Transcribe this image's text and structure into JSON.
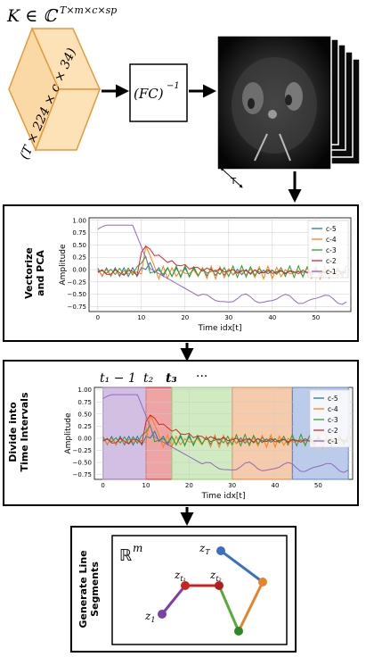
{
  "top": {
    "tensor_label": "K ∈ ℂ",
    "tensor_sup": "T×m×c×sp",
    "cube_label": "(T × 224 × c × 34)",
    "fc_label": "(FC)",
    "fc_sup": "−1",
    "t_label": "T"
  },
  "panel1": {
    "side_label_1": "Vectorize",
    "side_label_2": "and PCA",
    "ylabel": "Amplitude",
    "xlabel": "Time idx[t]"
  },
  "panel2": {
    "side_label_1": "Divide into",
    "side_label_2": "Time Intervals",
    "ylabel": "Amplitude",
    "xlabel": "Time idx[t]",
    "t1": "t₁ − 1",
    "t2": "t₂",
    "t3": "t₃",
    "dots": "···"
  },
  "panel3": {
    "side_label_1": "Generate Line",
    "side_label_2": "Segments",
    "space": "ℝ",
    "space_sup": "m",
    "points": [
      {
        "name": "z1",
        "label": "z",
        "sub": "1",
        "color": "#7b3fa8"
      },
      {
        "name": "zt1",
        "label": "z",
        "sub": "t₁",
        "color": "#cc2222"
      },
      {
        "name": "zt2",
        "label": "z",
        "sub": "t₂",
        "color": "#b01f1f"
      },
      {
        "name": "zgreen",
        "label": "",
        "sub": "",
        "color": "#2a8a2a"
      },
      {
        "name": "zorange",
        "label": "",
        "sub": "",
        "color": "#e8822a"
      },
      {
        "name": "zT",
        "label": "z",
        "sub": "T",
        "color": "#3a6fc4"
      }
    ]
  },
  "chart_data": [
    {
      "type": "line",
      "x_ticks": [
        "0",
        "10",
        "20",
        "30",
        "40",
        "50"
      ],
      "y_ticks": [
        "1.00",
        "0.75",
        "0.50",
        "0.25",
        "0.00",
        "−0.25",
        "−0.50",
        "−0.75"
      ],
      "xlim": [
        -2,
        58
      ],
      "ylim": [
        -0.85,
        1.05
      ],
      "xlabel": "Time idx[t]",
      "ylabel": "Amplitude",
      "legend": "right",
      "series": [
        {
          "name": "c-5",
          "color": "#1f77b4"
        },
        {
          "name": "c-4",
          "color": "#ff7f0e"
        },
        {
          "name": "c-3",
          "color": "#2ca02c"
        },
        {
          "name": "c-2",
          "color": "#d62728"
        },
        {
          "name": "c-1",
          "color": "#9467bd"
        }
      ]
    },
    {
      "type": "line",
      "x_ticks": [
        "0",
        "10",
        "20",
        "30",
        "40",
        "50"
      ],
      "y_ticks": [
        "1.00",
        "0.75",
        "0.50",
        "0.25",
        "0.00",
        "−0.25",
        "−0.50",
        "−0.75"
      ],
      "xlim": [
        -2,
        58
      ],
      "ylim": [
        -0.85,
        1.05
      ],
      "xlabel": "Time idx[t]",
      "ylabel": "Amplitude",
      "legend": "right",
      "intervals": [
        {
          "from": 0,
          "to": 10,
          "color": "#9467bd"
        },
        {
          "from": 10,
          "to": 16,
          "color": "#d62728"
        },
        {
          "from": 16,
          "to": 30,
          "color": "#8fce6c"
        },
        {
          "from": 30,
          "to": 44,
          "color": "#e8823a"
        },
        {
          "from": 44,
          "to": 57,
          "color": "#5a84cf"
        }
      ],
      "series": [
        {
          "name": "c-5",
          "color": "#1f77b4"
        },
        {
          "name": "c-4",
          "color": "#ff7f0e"
        },
        {
          "name": "c-3",
          "color": "#2ca02c"
        },
        {
          "name": "c-2",
          "color": "#d62728"
        },
        {
          "name": "c-1",
          "color": "#9467bd"
        }
      ]
    }
  ]
}
